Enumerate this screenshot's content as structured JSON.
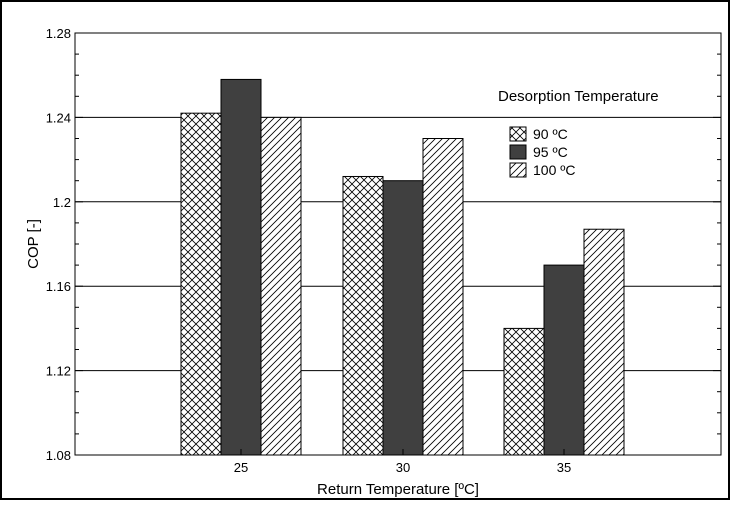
{
  "chart_data": {
    "type": "bar",
    "categories": [
      "25",
      "30",
      "35"
    ],
    "series": [
      {
        "name": "90  ºC",
        "values": [
          1.242,
          1.212,
          1.14
        ],
        "style": "crosshatch",
        "color": "#ffffff"
      },
      {
        "name": "95  ºC",
        "values": [
          1.258,
          1.21,
          1.17
        ],
        "style": "solid",
        "color": "#404040"
      },
      {
        "name": "100 ºC",
        "values": [
          1.24,
          1.23,
          1.187
        ],
        "style": "diagonal-hatch",
        "color": "#ffffff"
      }
    ],
    "xlabel": "Return Temperature [ºC]",
    "ylabel": "COP [-]",
    "ylim": [
      1.08,
      1.28
    ],
    "yticks": [
      1.08,
      1.12,
      1.16,
      1.2,
      1.24,
      1.28
    ],
    "ytick_labels": [
      "1.08",
      "1.12",
      "1.16",
      "1.2",
      "1.24",
      "1.28"
    ],
    "grid": "horizontal",
    "legend_title": "Desorption Temperature",
    "legend_position": "top-right"
  }
}
